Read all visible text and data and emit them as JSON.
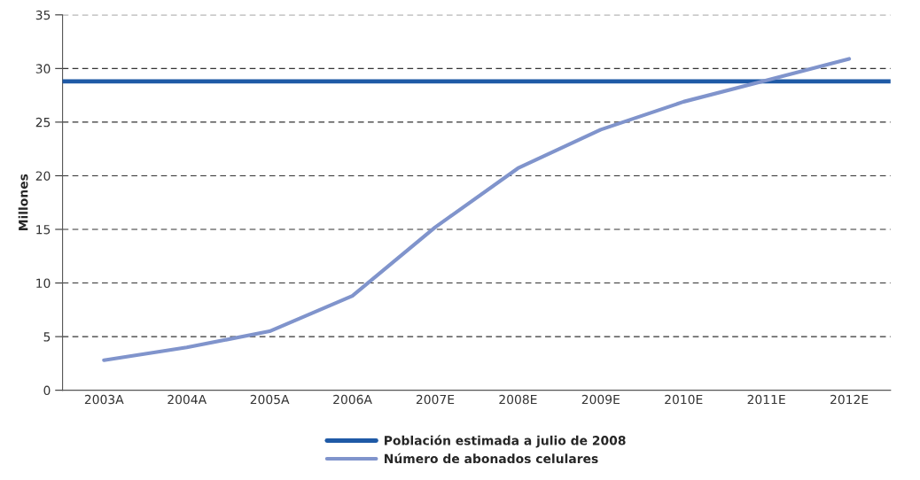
{
  "chart_data": {
    "type": "line",
    "ylabel": "Millones",
    "categories": [
      "2003A",
      "2004A",
      "2005A",
      "2006A",
      "2007E",
      "2008E",
      "2009E",
      "2010E",
      "2011E",
      "2012E"
    ],
    "series": [
      {
        "name": "Número de abonados celulares",
        "color": "#8094cc",
        "values": [
          2.8,
          4.0,
          5.5,
          8.8,
          15.2,
          20.7,
          24.3,
          26.9,
          28.9,
          30.9
        ]
      }
    ],
    "ref_lines": [
      {
        "axis": "y",
        "value": 28.8,
        "label": "Población estimada a julio de 2008",
        "color": "#1f5aa6"
      }
    ],
    "ylim": [
      0,
      35
    ],
    "yticks": [
      0,
      5,
      10,
      15,
      20,
      25,
      30,
      35
    ],
    "grid": "y",
    "legend": "bottom",
    "marker": "none",
    "line_style": "solid"
  }
}
